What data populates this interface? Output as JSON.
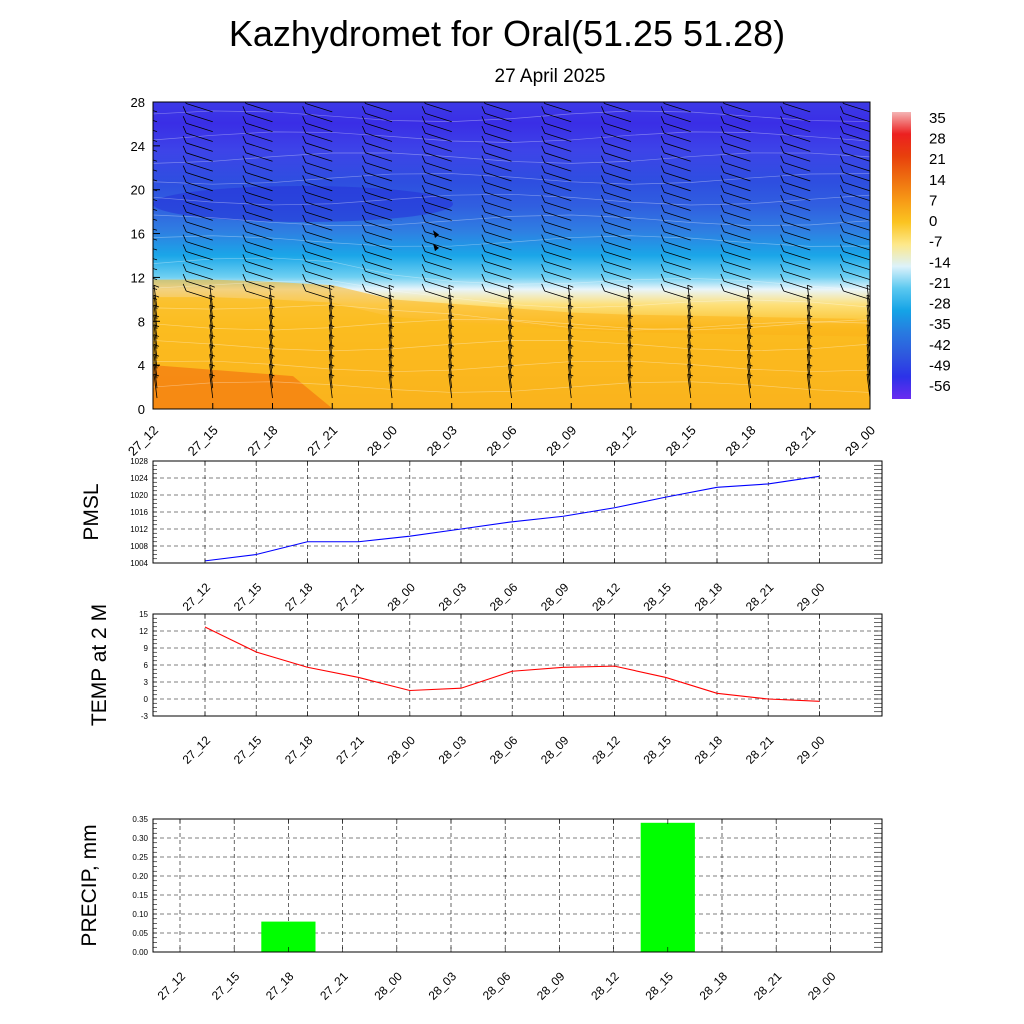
{
  "title": "Kazhydromet for Oral(51.25 51.28)",
  "subtitle": "27 April 2025",
  "chart_data": [
    {
      "type": "heatmap",
      "title": "",
      "x_tick_labels": [
        "27_12",
        "27_15",
        "27_18",
        "27_21",
        "28_00",
        "28_03",
        "28_06",
        "28_09",
        "28_12",
        "28_15",
        "28_18",
        "28_21",
        "29_00"
      ],
      "y_ticks": [
        0,
        4,
        8,
        12,
        16,
        20,
        24,
        28
      ],
      "ylim": [
        0,
        28
      ],
      "freezing_level": [
        11.8,
        11.8,
        11.6,
        11.3,
        10,
        9.6,
        9.2,
        8.8,
        8.6,
        8.5,
        8.4,
        8.3,
        8.2
      ],
      "colorbar": {
        "labels": [
          "35",
          "28",
          "21",
          "14",
          "7",
          "0",
          "-7",
          "-14",
          "-21",
          "-28",
          "-35",
          "-42",
          "-49",
          "-56"
        ],
        "stops": [
          {
            "value": 35,
            "color": "#f4b4b4"
          },
          {
            "value": 28,
            "color": "#ec2020"
          },
          {
            "value": 21,
            "color": "#e8400c"
          },
          {
            "value": 14,
            "color": "#ee6e10"
          },
          {
            "value": 7,
            "color": "#f79a16"
          },
          {
            "value": 0,
            "color": "#fbc421"
          },
          {
            "value": -7,
            "color": "#fde88a"
          },
          {
            "value": -14,
            "color": "#dcf2fb"
          },
          {
            "value": -21,
            "color": "#5ac8f0"
          },
          {
            "value": -28,
            "color": "#14a3e6"
          },
          {
            "value": -35,
            "color": "#287ae0"
          },
          {
            "value": -42,
            "color": "#2e58de"
          },
          {
            "value": -49,
            "color": "#2c32e8"
          },
          {
            "value": -56,
            "color": "#6a2cf0"
          }
        ]
      },
      "wind_barbs": true
    },
    {
      "type": "line",
      "ylabel": "PMSL",
      "x": [
        "27_12",
        "27_15",
        "27_18",
        "27_21",
        "28_00",
        "28_03",
        "28_06",
        "28_09",
        "28_12",
        "28_15",
        "28_18",
        "28_21",
        "29_00"
      ],
      "ylim": [
        1004,
        1028
      ],
      "y_ticks": [
        1004,
        1008,
        1012,
        1016,
        1020,
        1024,
        1028
      ],
      "series": [
        {
          "values": [
            1004.5,
            1006,
            1009,
            1009,
            1010.3,
            1012,
            1013.7,
            1015,
            1017,
            1019.5,
            1021.8,
            1022.6,
            1024.4
          ],
          "color": "#0000ff"
        }
      ],
      "grid": true
    },
    {
      "type": "line",
      "ylabel": "TEMP at 2 M",
      "x": [
        "27_12",
        "27_15",
        "27_18",
        "27_21",
        "28_00",
        "28_03",
        "28_06",
        "28_09",
        "28_12",
        "28_15",
        "28_18",
        "28_21",
        "29_00"
      ],
      "ylim": [
        -3,
        15
      ],
      "y_ticks": [
        -3,
        0,
        3,
        6,
        9,
        12,
        15
      ],
      "series": [
        {
          "values": [
            12.7,
            8.3,
            5.6,
            3.8,
            1.5,
            1.9,
            4.9,
            5.6,
            5.8,
            3.8,
            1.0,
            0.0,
            -0.4
          ],
          "color": "#ff0000"
        }
      ],
      "grid": true
    },
    {
      "type": "bar",
      "ylabel": "PRECIP, mm",
      "categories": [
        "27_12",
        "27_15",
        "27_18",
        "27_21",
        "28_00",
        "28_03",
        "28_06",
        "28_09",
        "28_12",
        "28_15",
        "28_18",
        "28_21",
        "29_00"
      ],
      "values": [
        0,
        0,
        0.08,
        0,
        0,
        0,
        0,
        0,
        0,
        0.34,
        0,
        0,
        0
      ],
      "ylim": [
        0,
        0.35
      ],
      "y_tick_labels": [
        "0.00",
        "0.05",
        "0.10",
        "0.15",
        "0.20",
        "0.25",
        "0.30",
        "0.35"
      ],
      "bar_color": "#00ff00",
      "grid": true
    }
  ]
}
